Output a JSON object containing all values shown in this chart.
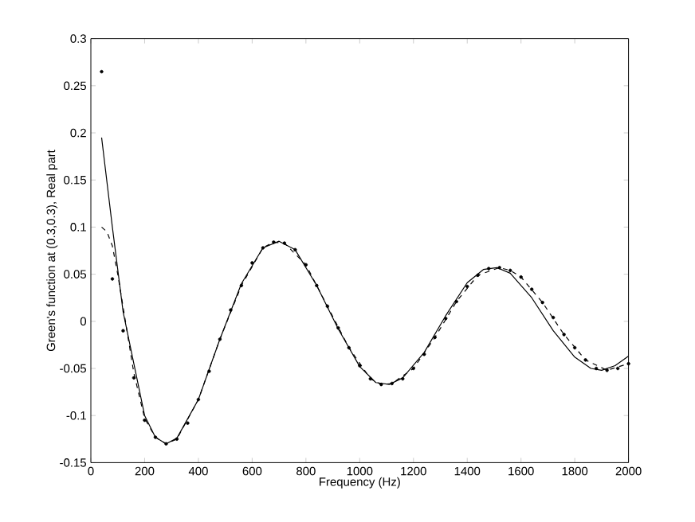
{
  "chart_data": {
    "type": "line",
    "xlabel": "Frequency (Hz)",
    "ylabel": "Green's function at (0.3,0.3), Real part",
    "xlim": [
      0,
      2000
    ],
    "ylim": [
      -0.15,
      0.3
    ],
    "xticks": [
      0,
      200,
      400,
      600,
      800,
      1000,
      1200,
      1400,
      1600,
      1800,
      2000
    ],
    "yticks": [
      -0.15,
      -0.1,
      -0.05,
      0,
      0.05,
      0.1,
      0.15,
      0.2,
      0.25,
      0.3
    ],
    "series": [
      {
        "line_style": "solid",
        "marker": "none",
        "color": "#000000",
        "x": [
          40,
          80,
          120,
          160,
          200,
          240,
          280,
          320,
          400,
          480,
          560,
          640,
          700,
          760,
          840,
          920,
          1000,
          1060,
          1110,
          1160,
          1240,
          1320,
          1400,
          1460,
          1510,
          1560,
          1640,
          1720,
          1800,
          1860,
          1900,
          1950,
          2000
        ],
        "values": [
          0.195,
          0.1,
          0.01,
          -0.045,
          -0.1,
          -0.123,
          -0.13,
          -0.124,
          -0.083,
          -0.019,
          0.04,
          0.078,
          0.085,
          0.076,
          0.038,
          -0.008,
          -0.048,
          -0.065,
          -0.067,
          -0.06,
          -0.033,
          0.006,
          0.041,
          0.055,
          0.057,
          0.051,
          0.025,
          -0.01,
          -0.038,
          -0.05,
          -0.052,
          -0.047,
          -0.037
        ]
      },
      {
        "line_style": "dashed",
        "marker": "none",
        "color": "#000000",
        "x": [
          40,
          60,
          80,
          100,
          120,
          160,
          200,
          240,
          280,
          320,
          400,
          480,
          560,
          640,
          680,
          720,
          800,
          880,
          960,
          1040,
          1080,
          1120,
          1200,
          1280,
          1360,
          1440,
          1520,
          1560,
          1600,
          1680,
          1760,
          1840,
          1920,
          2000
        ],
        "values": [
          0.1,
          0.095,
          0.08,
          0.05,
          0.015,
          -0.055,
          -0.103,
          -0.123,
          -0.13,
          -0.125,
          -0.083,
          -0.019,
          0.038,
          0.078,
          0.084,
          0.083,
          0.06,
          0.016,
          -0.028,
          -0.061,
          -0.067,
          -0.066,
          -0.05,
          -0.017,
          0.021,
          0.049,
          0.057,
          0.054,
          0.047,
          0.02,
          -0.014,
          -0.041,
          -0.052,
          -0.045
        ]
      },
      {
        "type": "scatter",
        "marker": "circle",
        "color": "#000000",
        "x": [
          40,
          80,
          120,
          160,
          200,
          240,
          280,
          320,
          360,
          400,
          440,
          480,
          520,
          560,
          600,
          640,
          680,
          720,
          760,
          800,
          840,
          880,
          920,
          960,
          1000,
          1040,
          1080,
          1120,
          1160,
          1200,
          1240,
          1280,
          1320,
          1360,
          1400,
          1440,
          1480,
          1520,
          1560,
          1600,
          1640,
          1680,
          1720,
          1760,
          1800,
          1840,
          1880,
          1920,
          1960,
          2000
        ],
        "values": [
          0.265,
          0.045,
          -0.01,
          -0.06,
          -0.105,
          -0.123,
          -0.13,
          -0.125,
          -0.108,
          -0.083,
          -0.053,
          -0.019,
          0.012,
          0.038,
          0.062,
          0.078,
          0.084,
          0.083,
          0.076,
          0.06,
          0.038,
          0.016,
          -0.007,
          -0.028,
          -0.047,
          -0.061,
          -0.067,
          -0.066,
          -0.061,
          -0.05,
          -0.035,
          -0.017,
          0.003,
          0.021,
          0.037,
          0.049,
          0.056,
          0.057,
          0.054,
          0.047,
          0.034,
          0.02,
          0.004,
          -0.014,
          -0.028,
          -0.041,
          -0.05,
          -0.052,
          -0.05,
          -0.045
        ]
      }
    ]
  }
}
